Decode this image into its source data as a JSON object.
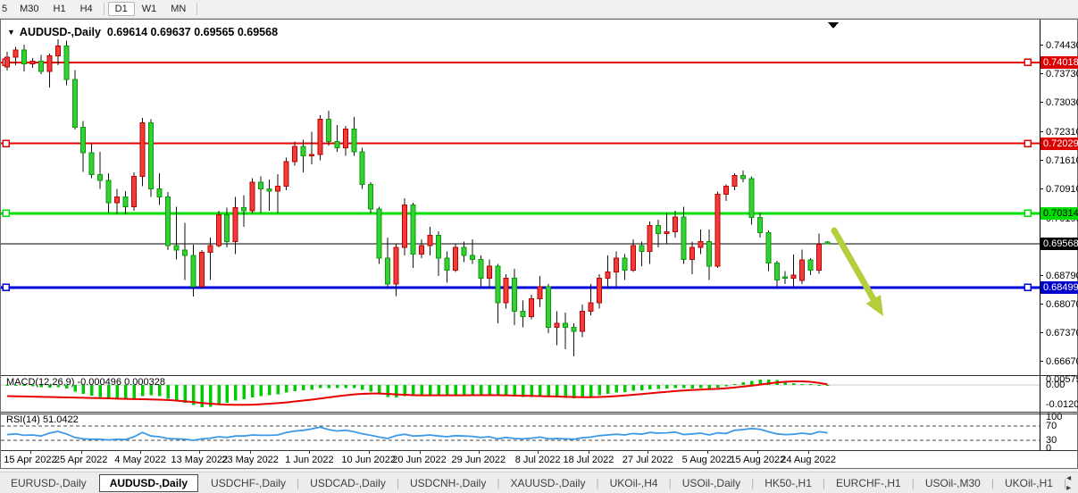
{
  "toolbar": {
    "timeframes": [
      "5",
      "M30",
      "H1",
      "H4",
      "D1",
      "W1",
      "MN"
    ],
    "active": "D1"
  },
  "chart_window": {
    "dropdown_icon": "▼",
    "title_symbol": "AUDUSD-,Daily",
    "title_ohlc": "0.69614 0.69637 0.69565 0.69568",
    "macd_label": "MACD(12,26,9) -0.000496 0.000328",
    "rsi_label": "RSI(14) 51.0422"
  },
  "price_axis": {
    "grid_labels": [
      "0.74430",
      "0.73730",
      "0.73030",
      "0.72310",
      "0.71610",
      "0.70910",
      "0.70190",
      "0.69490",
      "0.68790",
      "0.68070",
      "0.67370",
      "0.66670"
    ],
    "badges": [
      {
        "value": "0.74018",
        "price": 0.74018,
        "bg": "#dd0000",
        "fg": "#ffffff"
      },
      {
        "value": "0.72029",
        "price": 0.72029,
        "bg": "#dd0000",
        "fg": "#ffffff"
      },
      {
        "value": "0.70314",
        "price": 0.70314,
        "bg": "#00dd00",
        "fg": "#000000"
      },
      {
        "value": "0.69568",
        "price": 0.69568,
        "bg": "#000000",
        "fg": "#ffffff"
      },
      {
        "value": "0.68499",
        "price": 0.68499,
        "bg": "#0000cc",
        "fg": "#ffffff"
      }
    ],
    "macd_labels": [
      "0.005752",
      "0.00",
      "-0.012005"
    ],
    "rsi_labels": [
      "100",
      "70",
      "30",
      "0"
    ]
  },
  "chart_data": {
    "type": "candlestick",
    "symbol": "AUDUSD-",
    "timeframe": "Daily",
    "current_bar": {
      "open": 0.69614,
      "high": 0.69637,
      "low": 0.69565,
      "close": 0.69568
    },
    "colors": {
      "bull": "#f23b3b",
      "bull_border": "#bb0000",
      "bear": "#33d133",
      "bear_border": "#0b9a0b",
      "wick": "#111111",
      "hline_red": "#e60000",
      "hline_green": "#00e000",
      "hline_blue": "#0000dd",
      "price_line": "#000000",
      "macd_hist": "#00cc00",
      "macd_signal": "#e80000",
      "rsi_line": "#3d9ae8",
      "arrow": "#b5ce3e"
    },
    "hlines": [
      {
        "price": 0.74018,
        "color": "#e60000",
        "width": 2,
        "role": "resistance-upper"
      },
      {
        "price": 0.72029,
        "color": "#e60000",
        "width": 2,
        "role": "resistance-lower"
      },
      {
        "price": 0.70314,
        "color": "#00e000",
        "width": 3,
        "role": "pivot-green"
      },
      {
        "price": 0.68499,
        "color": "#0000dd",
        "width": 3,
        "role": "support-blue"
      },
      {
        "price": 0.69568,
        "color": "#000000",
        "width": 1,
        "role": "current-price"
      }
    ],
    "candles_ohlc": [
      [
        0.739,
        0.7428,
        0.7382,
        0.7415
      ],
      [
        0.7415,
        0.744,
        0.7395,
        0.7432
      ],
      [
        0.7432,
        0.7445,
        0.738,
        0.7398
      ],
      [
        0.7398,
        0.7412,
        0.7388,
        0.7405
      ],
      [
        0.7405,
        0.742,
        0.7373,
        0.7379
      ],
      [
        0.7379,
        0.7423,
        0.734,
        0.7418
      ],
      [
        0.7418,
        0.7458,
        0.7395,
        0.7442
      ],
      [
        0.7442,
        0.7455,
        0.7345,
        0.736
      ],
      [
        0.736,
        0.7383,
        0.7237,
        0.7243
      ],
      [
        0.7243,
        0.7258,
        0.7133,
        0.718
      ],
      [
        0.718,
        0.7203,
        0.7118,
        0.7126
      ],
      [
        0.7126,
        0.7182,
        0.7092,
        0.7112
      ],
      [
        0.7112,
        0.713,
        0.7032,
        0.7058
      ],
      [
        0.7058,
        0.7092,
        0.703,
        0.7072
      ],
      [
        0.7072,
        0.7086,
        0.7029,
        0.7048
      ],
      [
        0.7048,
        0.7132,
        0.7038,
        0.7122
      ],
      [
        0.7122,
        0.7266,
        0.7098,
        0.7254
      ],
      [
        0.7254,
        0.7262,
        0.7072,
        0.7092
      ],
      [
        0.7092,
        0.713,
        0.7052,
        0.7072
      ],
      [
        0.7072,
        0.7084,
        0.6942,
        0.6952
      ],
      [
        0.6952,
        0.7048,
        0.6918,
        0.6942
      ],
      [
        0.6942,
        0.7008,
        0.6868,
        0.6928
      ],
      [
        0.6928,
        0.6955,
        0.6828,
        0.6852
      ],
      [
        0.6852,
        0.6942,
        0.6848,
        0.6936
      ],
      [
        0.6936,
        0.6972,
        0.6868,
        0.6952
      ],
      [
        0.6952,
        0.7038,
        0.6948,
        0.7028
      ],
      [
        0.7028,
        0.7046,
        0.6948,
        0.6962
      ],
      [
        0.6962,
        0.7072,
        0.6932,
        0.7046
      ],
      [
        0.7046,
        0.7076,
        0.6998,
        0.7038
      ],
      [
        0.7038,
        0.7118,
        0.7032,
        0.7108
      ],
      [
        0.7108,
        0.7122,
        0.7032,
        0.7092
      ],
      [
        0.7092,
        0.7114,
        0.7038,
        0.7086
      ],
      [
        0.7086,
        0.7128,
        0.7032,
        0.7098
      ],
      [
        0.7098,
        0.7168,
        0.7088,
        0.7158
      ],
      [
        0.7158,
        0.7208,
        0.7148,
        0.7196
      ],
      [
        0.7196,
        0.7212,
        0.7132,
        0.7172
      ],
      [
        0.7172,
        0.7232,
        0.7152,
        0.7176
      ],
      [
        0.7176,
        0.7272,
        0.7162,
        0.7262
      ],
      [
        0.7262,
        0.7283,
        0.7198,
        0.7208
      ],
      [
        0.7208,
        0.7248,
        0.7182,
        0.7192
      ],
      [
        0.7192,
        0.7246,
        0.7172,
        0.7238
      ],
      [
        0.7238,
        0.7268,
        0.7172,
        0.7182
      ],
      [
        0.7182,
        0.7192,
        0.7092,
        0.7102
      ],
      [
        0.7102,
        0.7108,
        0.7032,
        0.7042
      ],
      [
        0.7042,
        0.7048,
        0.6908,
        0.6922
      ],
      [
        0.6922,
        0.6972,
        0.6848,
        0.6858
      ],
      [
        0.6858,
        0.6958,
        0.6829,
        0.6948
      ],
      [
        0.6948,
        0.7069,
        0.6928,
        0.7052
      ],
      [
        0.7052,
        0.7058,
        0.6898,
        0.6932
      ],
      [
        0.6932,
        0.6968,
        0.6922,
        0.6952
      ],
      [
        0.6952,
        0.6998,
        0.6928,
        0.6978
      ],
      [
        0.6978,
        0.6988,
        0.6878,
        0.6922
      ],
      [
        0.6922,
        0.6938,
        0.6862,
        0.6892
      ],
      [
        0.6892,
        0.6958,
        0.6888,
        0.6948
      ],
      [
        0.6948,
        0.6962,
        0.6912,
        0.6928
      ],
      [
        0.6928,
        0.6968,
        0.6908,
        0.6918
      ],
      [
        0.6918,
        0.6928,
        0.6852,
        0.6872
      ],
      [
        0.6872,
        0.6918,
        0.6848,
        0.6902
      ],
      [
        0.6902,
        0.6908,
        0.6762,
        0.6812
      ],
      [
        0.6812,
        0.6882,
        0.6798,
        0.6872
      ],
      [
        0.6872,
        0.6895,
        0.6758,
        0.6792
      ],
      [
        0.6792,
        0.6818,
        0.6752,
        0.6778
      ],
      [
        0.6778,
        0.6832,
        0.6772,
        0.6822
      ],
      [
        0.6822,
        0.6878,
        0.6802,
        0.6852
      ],
      [
        0.6852,
        0.6858,
        0.6738,
        0.6752
      ],
      [
        0.6752,
        0.6792,
        0.6708,
        0.6762
      ],
      [
        0.6762,
        0.6788,
        0.6698,
        0.6752
      ],
      [
        0.6752,
        0.6762,
        0.6681,
        0.6742
      ],
      [
        0.6742,
        0.6808,
        0.6728,
        0.6792
      ],
      [
        0.6792,
        0.6858,
        0.6782,
        0.6812
      ],
      [
        0.6812,
        0.6882,
        0.6798,
        0.6872
      ],
      [
        0.6872,
        0.6928,
        0.6852,
        0.6888
      ],
      [
        0.6888,
        0.6938,
        0.6852,
        0.6922
      ],
      [
        0.6922,
        0.6932,
        0.6868,
        0.6892
      ],
      [
        0.6892,
        0.6968,
        0.6888,
        0.6952
      ],
      [
        0.6952,
        0.6962,
        0.6902,
        0.6938
      ],
      [
        0.6938,
        0.7012,
        0.6908,
        0.7002
      ],
      [
        0.7002,
        0.7016,
        0.6948,
        0.6982
      ],
      [
        0.6982,
        0.7032,
        0.6958,
        0.6986
      ],
      [
        0.6986,
        0.7038,
        0.6972,
        0.7022
      ],
      [
        0.7022,
        0.7048,
        0.6908,
        0.6918
      ],
      [
        0.6918,
        0.6962,
        0.6882,
        0.6948
      ],
      [
        0.6948,
        0.6992,
        0.6932,
        0.6962
      ],
      [
        0.6962,
        0.6992,
        0.6868,
        0.6902
      ],
      [
        0.6902,
        0.7085,
        0.6898,
        0.7078
      ],
      [
        0.7078,
        0.7102,
        0.7062,
        0.7098
      ],
      [
        0.7098,
        0.713,
        0.7088,
        0.7124
      ],
      [
        0.7124,
        0.7136,
        0.7108,
        0.7117
      ],
      [
        0.7117,
        0.7122,
        0.7004,
        0.7021
      ],
      [
        0.7021,
        0.7032,
        0.6972,
        0.6984
      ],
      [
        0.6984,
        0.699,
        0.689,
        0.691
      ],
      [
        0.691,
        0.6915,
        0.685,
        0.6868
      ],
      [
        0.6876,
        0.689,
        0.6858,
        0.6872
      ],
      [
        0.6872,
        0.693,
        0.6852,
        0.688
      ],
      [
        0.6867,
        0.6943,
        0.6858,
        0.6917
      ],
      [
        0.6917,
        0.6922,
        0.688,
        0.6892
      ],
      [
        0.6892,
        0.6982,
        0.6884,
        0.6956
      ],
      [
        0.69614,
        0.69637,
        0.69565,
        0.69568
      ]
    ],
    "time_labels": [
      {
        "text": "15 Apr 2022",
        "bar": 3
      },
      {
        "text": "25 Apr 2022",
        "bar": 9
      },
      {
        "text": "4 May 2022",
        "bar": 16
      },
      {
        "text": "13 May 2022",
        "bar": 23
      },
      {
        "text": "23 May 2022",
        "bar": 29
      },
      {
        "text": "1 Jun 2022",
        "bar": 36
      },
      {
        "text": "10 Jun 2022",
        "bar": 43
      },
      {
        "text": "20 Jun 2022",
        "bar": 49
      },
      {
        "text": "29 Jun 2022",
        "bar": 56
      },
      {
        "text": "8 Jul 2022",
        "bar": 63
      },
      {
        "text": "18 Jul 2022",
        "bar": 69
      },
      {
        "text": "27 Jul 2022",
        "bar": 76
      },
      {
        "text": "5 Aug 2022",
        "bar": 83
      },
      {
        "text": "15 Aug 2022",
        "bar": 89
      },
      {
        "text": "24 Aug 2022",
        "bar": 95
      }
    ],
    "macd": {
      "params": "12,26,9",
      "current_main": -0.000496,
      "current_signal": 0.000328,
      "scale_labels": [
        0.005752,
        0.0,
        -0.012005
      ],
      "main": [
        -0.0002,
        -0.0004,
        -0.0006,
        -0.0008,
        -0.0012,
        -0.0015,
        -0.0013,
        -0.002,
        -0.0035,
        -0.0048,
        -0.0058,
        -0.0066,
        -0.0072,
        -0.0076,
        -0.008,
        -0.0078,
        -0.006,
        -0.0055,
        -0.006,
        -0.0075,
        -0.0085,
        -0.0095,
        -0.0108,
        -0.012,
        -0.0118,
        -0.0105,
        -0.0095,
        -0.0085,
        -0.0078,
        -0.0068,
        -0.006,
        -0.0055,
        -0.005,
        -0.0042,
        -0.0034,
        -0.003,
        -0.0026,
        -0.0018,
        -0.0016,
        -0.0018,
        -0.0016,
        -0.0018,
        -0.0026,
        -0.0036,
        -0.005,
        -0.0065,
        -0.0068,
        -0.006,
        -0.006,
        -0.0058,
        -0.0055,
        -0.0055,
        -0.0058,
        -0.0055,
        -0.0052,
        -0.0052,
        -0.0055,
        -0.0053,
        -0.006,
        -0.0058,
        -0.0062,
        -0.0066,
        -0.0064,
        -0.006,
        -0.0065,
        -0.0068,
        -0.007,
        -0.0072,
        -0.0068,
        -0.0062,
        -0.0055,
        -0.0048,
        -0.004,
        -0.0038,
        -0.0032,
        -0.003,
        -0.0024,
        -0.0022,
        -0.002,
        -0.0016,
        -0.0018,
        -0.002,
        -0.0018,
        -0.0022,
        -0.0015,
        -0.0008,
        0.0005,
        0.0015,
        0.0022,
        0.0028,
        0.003,
        0.0026,
        0.0018,
        0.001,
        0.0006,
        0.0002,
        -0.0002,
        -0.0005
      ],
      "signal": [
        -0.006,
        -0.0061,
        -0.0062,
        -0.0063,
        -0.0064,
        -0.0065,
        -0.0066,
        -0.0067,
        -0.0068,
        -0.0069,
        -0.007,
        -0.0071,
        -0.0072,
        -0.0074,
        -0.0075,
        -0.0076,
        -0.0077,
        -0.0078,
        -0.0079,
        -0.0081,
        -0.0084,
        -0.0088,
        -0.0092,
        -0.0097,
        -0.0101,
        -0.0104,
        -0.0106,
        -0.0107,
        -0.0107,
        -0.0106,
        -0.0104,
        -0.0101,
        -0.0098,
        -0.0094,
        -0.0089,
        -0.0084,
        -0.0079,
        -0.0073,
        -0.0067,
        -0.0061,
        -0.0056,
        -0.0051,
        -0.0048,
        -0.0046,
        -0.0046,
        -0.0048,
        -0.0051,
        -0.0053,
        -0.0055,
        -0.0056,
        -0.0056,
        -0.0056,
        -0.0056,
        -0.0056,
        -0.0056,
        -0.0055,
        -0.0055,
        -0.0055,
        -0.0055,
        -0.0056,
        -0.0057,
        -0.0058,
        -0.0059,
        -0.006,
        -0.0061,
        -0.0062,
        -0.0064,
        -0.0065,
        -0.0066,
        -0.0066,
        -0.0065,
        -0.0063,
        -0.006,
        -0.0057,
        -0.0053,
        -0.0049,
        -0.0045,
        -0.0041,
        -0.0037,
        -0.0033,
        -0.003,
        -0.0027,
        -0.0025,
        -0.0023,
        -0.0021,
        -0.0018,
        -0.0014,
        -0.0009,
        -0.0004,
        0.0002,
        0.0008,
        0.0013,
        0.0017,
        0.0019,
        0.0019,
        0.0017,
        0.0011,
        0.0003
      ]
    },
    "rsi": {
      "period": 14,
      "current": 51.0422,
      "levels": [
        70,
        30
      ],
      "values": [
        46,
        48,
        44,
        45,
        42,
        50,
        55,
        48,
        38,
        34,
        33,
        33,
        31,
        33,
        32,
        40,
        52,
        42,
        40,
        35,
        34,
        33,
        30,
        34,
        36,
        40,
        38,
        42,
        42,
        45,
        44,
        44,
        45,
        52,
        56,
        58,
        62,
        67,
        60,
        56,
        58,
        54,
        48,
        44,
        39,
        35,
        43,
        47,
        42,
        43,
        45,
        42,
        40,
        43,
        42,
        41,
        38,
        40,
        34,
        38,
        35,
        34,
        36,
        39,
        34,
        35,
        34,
        33,
        37,
        39,
        43,
        45,
        47,
        45,
        49,
        47,
        52,
        50,
        51,
        53,
        46,
        48,
        50,
        45,
        51,
        49,
        58,
        60,
        63,
        61,
        54,
        48,
        46,
        47,
        50,
        47,
        54,
        51
      ]
    },
    "annotation_arrow": {
      "direction": "down-right",
      "color": "#b5ce3e"
    }
  },
  "bottom_tabs": {
    "tabs": [
      "EURUSD-,Daily",
      "AUDUSD-,Daily",
      "USDCHF-,Daily",
      "USDCAD-,Daily",
      "USDCNH-,Daily",
      "XAUUSD-,Daily",
      "UKOil-,H4",
      "USOil-,Daily",
      "HK50-,H1",
      "EURCHF-,H1",
      "USOil-,M30",
      "UKOil-,H1"
    ],
    "active": "AUDUSD-,Daily",
    "scroll_left": "◂",
    "scroll_right": "▸"
  }
}
